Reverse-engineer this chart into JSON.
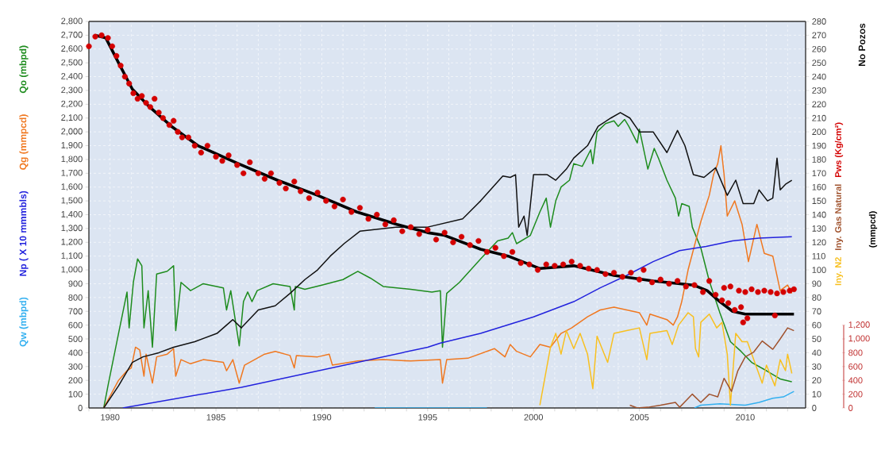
{
  "chart_data": {
    "type": "line",
    "xlim": [
      1979,
      2012.85
    ],
    "xticks": [
      {
        "value": 1979,
        "label": null
      },
      1980,
      {
        "value": 1981,
        "label": null
      },
      {
        "value": 1982,
        "label": null
      },
      {
        "value": 1983,
        "label": null
      },
      {
        "value": 1984,
        "label": null
      },
      1985,
      {
        "value": 1986,
        "label": null
      },
      {
        "value": 1987,
        "label": null
      },
      {
        "value": 1988,
        "label": null
      },
      {
        "value": 1989,
        "label": null
      },
      1990,
      {
        "value": 1991,
        "label": null
      },
      {
        "value": 1992,
        "label": null
      },
      {
        "value": 1993,
        "label": null
      },
      {
        "value": 1994,
        "label": null
      },
      1995,
      {
        "value": 1996,
        "label": null
      },
      {
        "value": 1997,
        "label": null
      },
      {
        "value": 1998,
        "label": null
      },
      {
        "value": 1999,
        "label": null
      },
      2000,
      {
        "value": 2001,
        "label": null
      },
      {
        "value": 2002,
        "label": null
      },
      {
        "value": 2003,
        "label": null
      },
      {
        "value": 2004,
        "label": null
      },
      2005,
      {
        "value": 2006,
        "label": null
      },
      {
        "value": 2007,
        "label": null
      },
      {
        "value": 2008,
        "label": null
      },
      {
        "value": 2009,
        "label": null
      },
      2010,
      {
        "value": 2011,
        "label": null
      },
      {
        "value": 2012,
        "label": null
      }
    ],
    "ylim": [
      0,
      2800
    ],
    "yticks": [
      0,
      100,
      200,
      300,
      400,
      500,
      600,
      700,
      800,
      900,
      {
        "value": 1000,
        "label": "1,000"
      },
      {
        "value": 1100,
        "label": "1,100"
      },
      {
        "value": 1200,
        "label": "1,200"
      },
      {
        "value": 1300,
        "label": "1,300"
      },
      {
        "value": 1400,
        "label": "1,400"
      },
      {
        "value": 1500,
        "label": "1,500"
      },
      {
        "value": 1600,
        "label": "1,600"
      },
      {
        "value": 1700,
        "label": "1,700"
      },
      {
        "value": 1800,
        "label": "1,800"
      },
      {
        "value": 1900,
        "label": "1,900"
      },
      {
        "value": 2000,
        "label": "2,000"
      },
      {
        "value": 2100,
        "label": "2,100"
      },
      {
        "value": 2200,
        "label": "2,200"
      },
      {
        "value": 2300,
        "label": "2,300"
      },
      {
        "value": 2400,
        "label": "2,400"
      },
      {
        "value": 2500,
        "label": "2,500"
      },
      {
        "value": 2600,
        "label": "2,600"
      },
      {
        "value": 2700,
        "label": "2,700"
      },
      {
        "value": 2800,
        "label": "2,800"
      }
    ],
    "y2lim": [
      0,
      280
    ],
    "y2ticks": [
      0,
      10,
      20,
      30,
      40,
      50,
      60,
      70,
      80,
      90,
      100,
      110,
      120,
      130,
      140,
      150,
      160,
      170,
      180,
      190,
      200,
      210,
      220,
      230,
      240,
      250,
      260,
      270,
      280
    ],
    "y3lim": [
      0,
      1200
    ],
    "y3ticks": [
      0,
      200,
      400,
      600,
      800,
      {
        "value": 1000,
        "label": "1,000"
      },
      {
        "value": 1200,
        "label": "1,200"
      }
    ],
    "grid": true,
    "annotations": [
      "(mmpcd)"
    ],
    "series": [
      {
        "name": "Qo (mbpd)",
        "color": "#1e8c1e",
        "x": [
          1979.7,
          1979.9,
          1980.4,
          1980.8,
          1980.9,
          1981.1,
          1981.3,
          1981.5,
          1981.6,
          1981.8,
          1982.0,
          1982.2,
          1982.7,
          1983.0,
          1983.1,
          1983.35,
          1983.8,
          1984.4,
          1985.35,
          1985.5,
          1985.7,
          1986.1,
          1986.3,
          1986.5,
          1986.7,
          1986.95,
          1987.7,
          1988.5,
          1988.7,
          1988.75,
          1989.2,
          1990.0,
          1991.0,
          1991.7,
          1992.3,
          1992.9,
          1994.2,
          1995.2,
          1995.6,
          1995.7,
          1995.9,
          1996.5,
          1997.5,
          1998.3,
          1998.8,
          1999.0,
          1999.2,
          1999.85,
          2000.3,
          2000.6,
          2000.8,
          2001.05,
          2001.3,
          2001.7,
          2001.9,
          2002.3,
          2002.7,
          2002.8,
          2003.0,
          2003.4,
          2003.8,
          2004.0,
          2004.3,
          2004.5,
          2004.9,
          2005.0,
          2005.4,
          2005.7,
          2005.9,
          2006.3,
          2006.7,
          2006.85,
          2007.0,
          2007.35,
          2007.5,
          2007.9,
          2008.3,
          2008.8,
          2009.3,
          2009.8,
          2010.3,
          2011.0,
          2011.65,
          2012.2
        ],
        "values": [
          0,
          160,
          540,
          840,
          580,
          910,
          1080,
          1030,
          580,
          850,
          440,
          970,
          990,
          1030,
          560,
          910,
          850,
          900,
          870,
          710,
          850,
          450,
          770,
          840,
          770,
          850,
          900,
          880,
          710,
          880,
          860,
          890,
          930,
          990,
          940,
          880,
          860,
          840,
          850,
          440,
          830,
          910,
          1080,
          1210,
          1230,
          1270,
          1190,
          1250,
          1420,
          1520,
          1310,
          1500,
          1600,
          1650,
          1770,
          1750,
          1870,
          1770,
          2000,
          2060,
          2080,
          2040,
          2090,
          2040,
          1920,
          2020,
          1730,
          1880,
          1810,
          1650,
          1520,
          1390,
          1480,
          1460,
          1310,
          1160,
          920,
          690,
          480,
          410,
          330,
          270,
          210,
          190
        ]
      },
      {
        "name": "Qg (mmpcd)",
        "color": "#f07820",
        "x": [
          1979.7,
          1980.4,
          1980.8,
          1981.0,
          1981.2,
          1981.4,
          1981.6,
          1981.7,
          1982.0,
          1982.2,
          1982.7,
          1983.0,
          1983.1,
          1983.35,
          1983.8,
          1984.4,
          1985.35,
          1985.5,
          1985.8,
          1986.1,
          1986.35,
          1987.3,
          1987.8,
          1988.5,
          1988.7,
          1988.8,
          1989.8,
          1990.35,
          1990.5,
          1991.7,
          1992.9,
          1994.2,
          1995.6,
          1995.7,
          1995.9,
          1996.9,
          1998.15,
          1998.65,
          1998.9,
          1999.2,
          1999.85,
          2000.3,
          2000.8,
          2001.3,
          2001.8,
          2002.55,
          2003.15,
          2003.8,
          2004.4,
          2005.0,
          2005.35,
          2005.5,
          2006.3,
          2006.6,
          2006.8,
          2007.0,
          2007.3,
          2007.9,
          2008.3,
          2008.5,
          2008.7,
          2008.85,
          2009.0,
          2009.15,
          2009.5,
          2009.85,
          2010.15,
          2010.55,
          2010.9,
          2011.3,
          2011.65,
          2012.0,
          2012.2
        ],
        "values": [
          0,
          200,
          270,
          290,
          440,
          420,
          230,
          390,
          180,
          370,
          390,
          430,
          230,
          350,
          320,
          350,
          330,
          270,
          350,
          180,
          310,
          390,
          410,
          380,
          290,
          380,
          370,
          390,
          310,
          340,
          350,
          340,
          350,
          180,
          350,
          360,
          430,
          370,
          460,
          410,
          370,
          460,
          440,
          540,
          580,
          660,
          710,
          730,
          710,
          690,
          600,
          680,
          640,
          600,
          660,
          770,
          1000,
          1350,
          1540,
          1690,
          1770,
          1900,
          1690,
          1390,
          1500,
          1330,
          1060,
          1330,
          1120,
          1100,
          850,
          890,
          830
        ]
      },
      {
        "name": "Np ( X 10 mmmbls)",
        "color": "#2222dd",
        "x": [
          1980.6,
          1986.2,
          1995.0,
          1995.6,
          1997.5,
          2000.0,
          2001.9,
          2003.15,
          2004.4,
          2005.65,
          2006.9,
          2008.15,
          2009.4,
          2010.65,
          2012.2
        ],
        "values": [
          0,
          150,
          440,
          470,
          540,
          660,
          770,
          870,
          960,
          1060,
          1140,
          1170,
          1210,
          1230,
          1240
        ]
      },
      {
        "name": "Qw (mbpd)",
        "color": "#33b0f0",
        "x": [
          1992.5,
          1997.8,
          2000.0,
          2007.6,
          2007.9,
          2008.8,
          2010.0,
          2010.65,
          2011.3,
          2011.8,
          2012.3
        ],
        "values": [
          0,
          0,
          null,
          0,
          20,
          30,
          20,
          40,
          70,
          80,
          120
        ]
      },
      {
        "name": "No Pozos",
        "color": "#111111",
        "axis": "y2",
        "x": [
          1979.7,
          1980.4,
          1981.05,
          1981.55,
          1982.3,
          1983.0,
          1984.0,
          1985.05,
          1985.8,
          1986.2,
          1987.0,
          1987.8,
          1988.5,
          1989.2,
          1989.8,
          1990.4,
          1991.05,
          1991.8,
          1993.5,
          1995.0,
          1996.65,
          1997.5,
          1998.55,
          1998.9,
          1999.15,
          1999.3,
          1999.55,
          1999.7,
          2000.0,
          2000.65,
          2001.05,
          2001.55,
          2001.9,
          2002.55,
          2003.05,
          2003.65,
          2004.1,
          2004.55,
          2005.0,
          2005.65,
          2006.3,
          2006.8,
          2007.15,
          2007.55,
          2008.05,
          2008.6,
          2009.15,
          2009.55,
          2009.9,
          2010.4,
          2010.65,
          2011.05,
          2011.3,
          2011.5,
          2011.65,
          2011.9,
          2012.2
        ],
        "values": [
          0,
          16,
          33,
          37,
          40,
          44,
          48,
          54,
          64,
          58,
          71,
          74,
          83,
          93,
          100,
          110,
          119,
          128,
          131,
          131,
          137,
          150,
          168,
          167,
          169,
          131,
          139,
          125,
          169,
          169,
          165,
          173,
          181,
          190,
          204,
          210,
          214,
          210,
          200,
          200,
          185,
          201,
          190,
          169,
          167,
          174,
          154,
          165,
          148,
          148,
          158,
          150,
          152,
          181,
          158,
          162,
          165
        ]
      },
      {
        "name": "Pws (Kg/cm²)",
        "color": "#d40000",
        "axis": "y2",
        "type": "scatter",
        "marker": "circle",
        "x": [
          1979.0,
          1979.3,
          1979.6,
          1979.9,
          1980.1,
          1980.3,
          1980.5,
          1980.7,
          1980.9,
          1981.1,
          1981.3,
          1981.5,
          1981.7,
          1981.9,
          1982.1,
          1982.3,
          1982.5,
          1982.8,
          1983.0,
          1983.2,
          1983.4,
          1983.7,
          1984.0,
          1984.3,
          1984.6,
          1985.0,
          1985.3,
          1985.6,
          1986.0,
          1986.3,
          1986.6,
          1987.0,
          1987.3,
          1987.6,
          1988.0,
          1988.3,
          1988.7,
          1989.0,
          1989.4,
          1989.8,
          1990.2,
          1990.6,
          1991.0,
          1991.4,
          1991.8,
          1992.2,
          1992.6,
          1993.0,
          1993.4,
          1993.8,
          1994.2,
          1994.6,
          1995.0,
          1995.4,
          1995.8,
          1996.2,
          1996.6,
          1997.0,
          1997.4,
          1997.8,
          1998.2,
          1998.6,
          1999.0,
          1999.4,
          1999.8,
          2000.2,
          2000.6,
          2001.0,
          2001.4,
          2001.8,
          2002.2,
          2002.6,
          2003.0,
          2003.4,
          2003.8,
          2004.2,
          2004.6,
          2005.0,
          2005.2,
          2005.6,
          2006.0,
          2006.4,
          2006.8,
          2007.2,
          2007.6,
          2008.0,
          2008.3,
          2008.6,
          2008.9,
          2009.0,
          2009.2,
          2009.3,
          2009.5,
          2009.7,
          2009.8,
          2009.9,
          2010.0,
          2010.1,
          2010.3,
          2010.6,
          2010.9,
          2011.2,
          2011.4,
          2011.5,
          2011.8,
          2012.1,
          2012.3
        ],
        "values": [
          262,
          269,
          270,
          268,
          262,
          255,
          248,
          240,
          235,
          228,
          224,
          226,
          221,
          218,
          224,
          214,
          210,
          205,
          208,
          200,
          196,
          196,
          190,
          185,
          190,
          182,
          179,
          183,
          176,
          170,
          178,
          170,
          166,
          170,
          163,
          159,
          164,
          157,
          152,
          156,
          150,
          146,
          151,
          142,
          145,
          137,
          140,
          133,
          136,
          128,
          131,
          126,
          129,
          122,
          127,
          120,
          124,
          118,
          121,
          113,
          116,
          110,
          113,
          105,
          104,
          100,
          104,
          103,
          104,
          106,
          103,
          101,
          100,
          97,
          98,
          95,
          98,
          93,
          100,
          91,
          93,
          90,
          92,
          88,
          89,
          84,
          92,
          82,
          78,
          87,
          76,
          88,
          71,
          85,
          73,
          62,
          84,
          65,
          86,
          84,
          85,
          84,
          67,
          83,
          84,
          85,
          86
        ]
      },
      {
        "name": "Iny. Gas Natural",
        "color": "#a0522d",
        "axis": "y3",
        "x": [
          2004.55,
          2004.9,
          2005.4,
          2006.0,
          2006.7,
          2006.9,
          2007.5,
          2007.9,
          2008.3,
          2008.7,
          2009.0,
          2009.35,
          2009.65,
          2010.0,
          2010.4,
          2010.8,
          2011.3,
          2011.65,
          2012.0,
          2012.3
        ],
        "values": [
          40,
          0,
          10,
          40,
          80,
          10,
          200,
          80,
          200,
          160,
          430,
          240,
          540,
          740,
          810,
          970,
          850,
          1000,
          1160,
          1120
        ]
      },
      {
        "name": "Iny. N2",
        "color": "#f8c020",
        "axis": "y2",
        "x": [
          2000.3,
          2000.55,
          2000.8,
          2001.05,
          2001.3,
          2001.55,
          2001.9,
          2002.2,
          2002.55,
          2002.8,
          2003.0,
          2003.5,
          2003.8,
          2004.4,
          2005.0,
          2005.35,
          2005.5,
          2006.3,
          2006.55,
          2006.85,
          2007.3,
          2007.55,
          2007.65,
          2007.8,
          2007.9,
          2008.3,
          2008.65,
          2008.9,
          2009.15,
          2009.3,
          2009.55,
          2009.85,
          2010.1,
          2010.4,
          2010.8,
          2011.0,
          2011.4,
          2011.65,
          2011.9,
          2012.0,
          2012.2
        ],
        "values": [
          2,
          23,
          44,
          54,
          39,
          56,
          43,
          54,
          39,
          14,
          52,
          33,
          54,
          56,
          58,
          35,
          54,
          56,
          46,
          60,
          69,
          66,
          43,
          37,
          62,
          68,
          58,
          62,
          39,
          2,
          54,
          48,
          48,
          35,
          18,
          31,
          16,
          35,
          27,
          39,
          25
        ]
      },
      {
        "color": "#000000",
        "axis": "y2",
        "x": [
          1979.3,
          1979.8,
          1980.4,
          1981.05,
          1981.8,
          1982.9,
          1984.15,
          1986.05,
          1987.9,
          1989.8,
          1991.65,
          1993.55,
          1995.0,
          1995.8,
          1997.5,
          1998.8,
          2000.3,
          2001.9,
          2003.8,
          2005.65,
          2007.55,
          2008.2,
          2008.8,
          2009.4,
          2010.0,
          2012.3
        ],
        "values": [
          270,
          268,
          250,
          231,
          219,
          204,
          190,
          177,
          165,
          154,
          142,
          133,
          127,
          125,
          115,
          110,
          101,
          103,
          96,
          92,
          89,
          85,
          77,
          70,
          68,
          68
        ]
      }
    ]
  }
}
